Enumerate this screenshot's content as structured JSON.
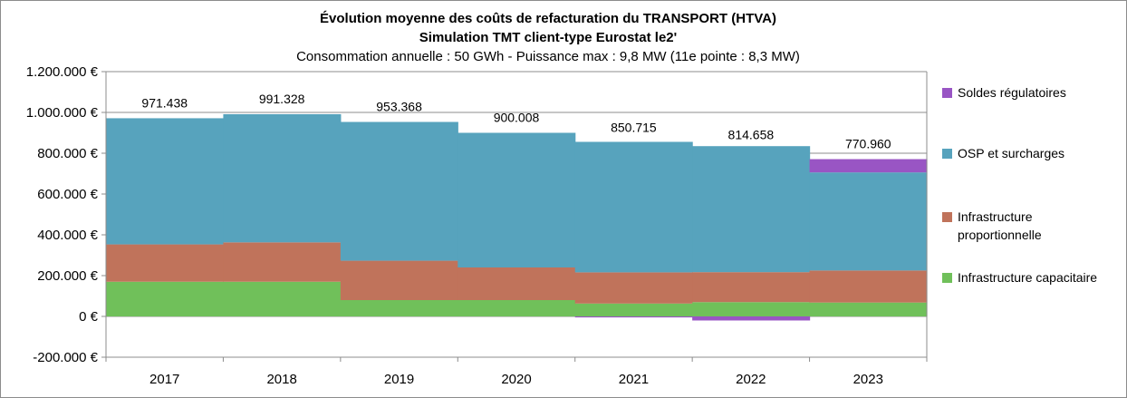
{
  "chart_data": {
    "type": "area",
    "title": "Évolution moyenne des coûts de refacturation du TRANSPORT (HTVA)",
    "subtitle": "Simulation TMT client-type Eurostat le2'",
    "subtitle2": "Consommation annuelle : 50 GWh - Puissance max : 9,8 MW (11e pointe : 8,3 MW)",
    "categories": [
      "2017",
      "2018",
      "2019",
      "2020",
      "2021",
      "2022",
      "2023"
    ],
    "ylim": [
      -200000,
      1200000
    ],
    "yticks": [
      -200000,
      0,
      200000,
      400000,
      600000,
      800000,
      1000000,
      1200000
    ],
    "ytick_labels": [
      "-200.000 €",
      "0 €",
      "200.000 €",
      "400.000 €",
      "600.000 €",
      "800.000 €",
      "1.000.000 €",
      "1.200.000 €"
    ],
    "series": [
      {
        "name": "Infrastructure capacitaire",
        "color": "#70c05a",
        "values": [
          170000,
          170000,
          80000,
          80000,
          63000,
          70000,
          68000
        ]
      },
      {
        "name": "Infrastructure proportionnelle",
        "color": "#c0735b",
        "values": [
          183000,
          193000,
          193000,
          160000,
          153000,
          147000,
          157000
        ]
      },
      {
        "name": "OSP et surcharges",
        "color": "#57a3bd",
        "values": [
          618438,
          628328,
          680368,
          660008,
          639715,
          617658,
          480960
        ]
      },
      {
        "name": "Soldes régulatoires",
        "color": "#9955c4",
        "values": [
          0,
          0,
          0,
          0,
          -5000,
          -20000,
          65000
        ]
      }
    ],
    "totals": [
      971438,
      991328,
      953368,
      900008,
      850715,
      814658,
      770960
    ],
    "total_labels": [
      "971.438",
      "991.328",
      "953.368",
      "900.008",
      "850.715",
      "814.658",
      "770.960"
    ],
    "legend_order": [
      "Soldes régulatoires",
      "OSP et surcharges",
      "Infrastructure proportionnelle",
      "Infrastructure capacitaire"
    ],
    "grid": true,
    "legend_position": "right"
  }
}
